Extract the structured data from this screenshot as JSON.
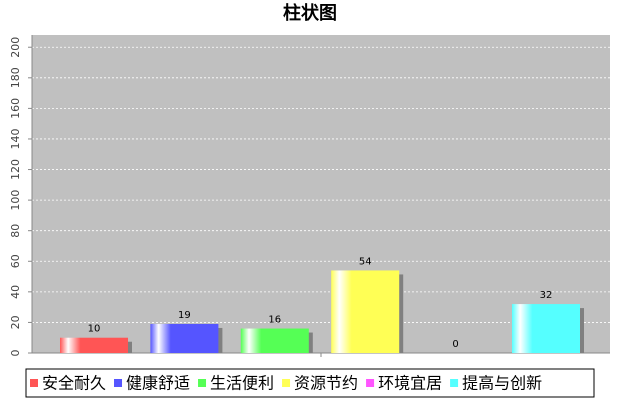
{
  "chart_data": {
    "type": "bar",
    "title": "柱状图",
    "categories": [
      null
    ],
    "series": [
      {
        "name": "安全耐久",
        "color": "#ff5555",
        "values": [
          10
        ]
      },
      {
        "name": "健康舒适",
        "color": "#5555ff",
        "values": [
          19
        ]
      },
      {
        "name": "生活便利",
        "color": "#55ff55",
        "values": [
          16
        ]
      },
      {
        "name": "资源节约",
        "color": "#ffff55",
        "values": [
          54
        ]
      },
      {
        "name": "环境宜居",
        "color": "#ff55ff",
        "values": [
          0
        ]
      },
      {
        "name": "提高与创新",
        "color": "#55ffff",
        "values": [
          32
        ]
      }
    ],
    "ylim": [
      0,
      208
    ],
    "yticks": [
      0,
      20,
      40,
      60,
      80,
      100,
      120,
      140,
      160,
      180,
      200
    ],
    "grid": true,
    "legend": "bottom"
  }
}
